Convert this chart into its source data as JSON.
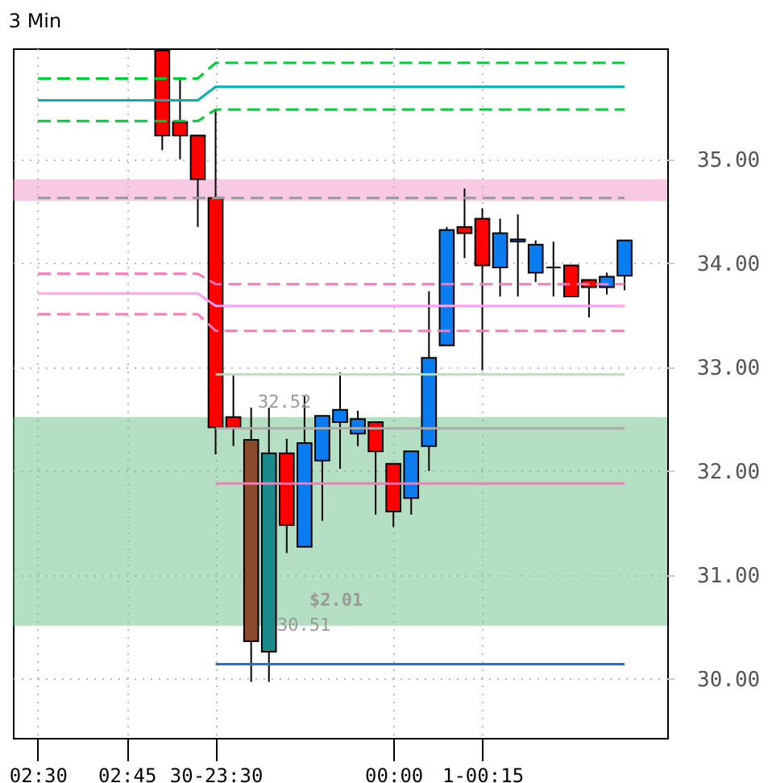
{
  "chart_data": {
    "type": "candlestick",
    "title": "3 Min",
    "categories": [
      null,
      "02:30",
      null,
      null,
      null,
      null,
      "02:45",
      null,
      null,
      null,
      null,
      "30-23:30",
      null,
      null,
      null,
      null,
      null,
      null,
      null,
      null,
      null,
      "00:00",
      null,
      null,
      null,
      null,
      "1-00:15",
      null,
      null,
      null,
      null,
      null,
      null,
      null,
      null,
      null,
      null
    ],
    "ohlc": [
      null,
      null,
      null,
      null,
      null,
      null,
      null,
      null,
      [
        36.05,
        36.05,
        35.09,
        35.23
      ],
      [
        35.36,
        35.78,
        35.0,
        35.23
      ],
      [
        35.23,
        35.23,
        34.35,
        34.81
      ],
      [
        34.63,
        35.48,
        32.16,
        32.42
      ],
      [
        32.52,
        32.92,
        32.24,
        32.42
      ],
      [
        32.3,
        32.61,
        29.97,
        30.36
      ],
      [
        30.26,
        32.61,
        29.97,
        32.17
      ],
      [
        32.17,
        32.31,
        31.21,
        31.48
      ],
      [
        31.27,
        32.72,
        31.27,
        32.27
      ],
      [
        32.1,
        32.53,
        31.52,
        32.53
      ],
      [
        32.47,
        32.95,
        32.02,
        32.59
      ],
      [
        32.36,
        32.58,
        32.24,
        32.5
      ],
      [
        32.47,
        32.47,
        31.58,
        32.19
      ],
      [
        32.07,
        32.07,
        31.46,
        31.61
      ],
      [
        31.74,
        32.19,
        31.58,
        32.19
      ],
      [
        32.24,
        33.73,
        32.0,
        33.09
      ],
      [
        33.21,
        34.35,
        33.21,
        34.32
      ],
      [
        34.35,
        34.72,
        34.05,
        34.29
      ],
      [
        34.43,
        34.53,
        32.97,
        33.98
      ],
      [
        33.96,
        34.43,
        33.68,
        34.29
      ],
      [
        34.21,
        34.47,
        33.68,
        34.23
      ],
      [
        33.91,
        34.22,
        33.82,
        34.18
      ],
      [
        33.96,
        34.21,
        33.68,
        33.96
      ],
      [
        33.98,
        33.98,
        33.68,
        33.68
      ],
      [
        33.84,
        33.84,
        33.48,
        33.77
      ],
      [
        33.77,
        33.91,
        33.7,
        33.87
      ],
      [
        33.88,
        34.22,
        33.74,
        34.22
      ],
      null,
      null
    ],
    "colors": [
      null,
      null,
      null,
      null,
      null,
      null,
      null,
      null,
      "#ff0000",
      "#ff0000",
      "#ff0000",
      "#ff0000",
      "#ff0000",
      "#8b4a2b",
      "#1a8a8a",
      "#ff0000",
      "#0a7cf0",
      "#0a7cf0",
      "#0a7cf0",
      "#0a7cf0",
      "#ff0000",
      "#ff0000",
      "#0a7cf0",
      "#0a7cf0",
      "#0a7cf0",
      "#ff0000",
      "#ff0000",
      "#0a7cf0",
      "#0a7cf0",
      "#0a7cf0",
      "#000000",
      "#ff0000",
      "#ff0000",
      "#0a7cf0",
      "#0a7cf0",
      null,
      null
    ],
    "series": [
      {
        "type": "line",
        "color": "#00b3b3",
        "line_style": "solid",
        "values": [
          null,
          35.57,
          35.57,
          35.57,
          35.57,
          35.57,
          35.57,
          35.57,
          35.57,
          35.57,
          35.57,
          35.7,
          35.7,
          35.7,
          35.7,
          35.7,
          35.7,
          35.7,
          35.7,
          35.7,
          35.7,
          35.7,
          35.7,
          35.7,
          35.7,
          35.7,
          35.7,
          35.7,
          35.7,
          35.7,
          35.7,
          35.7,
          35.7,
          35.7,
          35.7,
          null,
          null
        ]
      },
      {
        "type": "line",
        "color": "#00cc33",
        "line_style": "dashed",
        "values": [
          null,
          35.78,
          35.78,
          35.78,
          35.78,
          35.78,
          35.78,
          35.78,
          35.78,
          35.78,
          35.78,
          35.93,
          35.93,
          35.93,
          35.93,
          35.93,
          35.93,
          35.93,
          35.93,
          35.93,
          35.93,
          35.93,
          35.93,
          35.93,
          35.93,
          35.93,
          35.93,
          35.93,
          35.93,
          35.93,
          35.93,
          35.93,
          35.93,
          35.93,
          35.93,
          null,
          null
        ]
      },
      {
        "type": "line",
        "color": "#00cc33",
        "line_style": "dashed",
        "values": [
          null,
          35.37,
          35.37,
          35.37,
          35.37,
          35.37,
          35.37,
          35.37,
          35.37,
          35.37,
          35.37,
          35.48,
          35.48,
          35.48,
          35.48,
          35.48,
          35.48,
          35.48,
          35.48,
          35.48,
          35.48,
          35.48,
          35.48,
          35.48,
          35.48,
          35.48,
          35.48,
          35.48,
          35.48,
          35.48,
          35.48,
          35.48,
          35.48,
          35.48,
          35.48,
          null,
          null
        ]
      },
      {
        "type": "line",
        "color": "#999999",
        "line_style": "dashed",
        "values": [
          null,
          34.63,
          34.63,
          34.63,
          34.63,
          34.63,
          34.63,
          34.63,
          34.63,
          34.63,
          34.63,
          34.63,
          34.63,
          34.63,
          34.63,
          34.63,
          34.63,
          34.63,
          34.63,
          34.63,
          34.63,
          34.63,
          34.63,
          34.63,
          34.63,
          34.63,
          34.63,
          34.63,
          34.63,
          34.63,
          34.63,
          34.63,
          34.63,
          34.63,
          34.63,
          null,
          null
        ]
      },
      {
        "type": "line",
        "color": "#ff77bb",
        "line_style": "dashed",
        "values": [
          null,
          33.9,
          33.9,
          33.9,
          33.9,
          33.9,
          33.9,
          33.9,
          33.9,
          33.9,
          33.9,
          33.8,
          33.8,
          33.8,
          33.8,
          33.8,
          33.8,
          33.8,
          33.8,
          33.8,
          33.8,
          33.8,
          33.8,
          33.8,
          33.8,
          33.8,
          33.8,
          33.8,
          33.8,
          33.8,
          33.8,
          33.8,
          33.8,
          33.8,
          33.8,
          null,
          null
        ]
      },
      {
        "type": "line",
        "color": "#ffa0f0",
        "line_style": "solid",
        "values": [
          null,
          33.71,
          33.71,
          33.71,
          33.71,
          33.71,
          33.71,
          33.71,
          33.71,
          33.71,
          33.71,
          33.59,
          33.59,
          33.59,
          33.59,
          33.59,
          33.59,
          33.59,
          33.59,
          33.59,
          33.59,
          33.59,
          33.59,
          33.59,
          33.59,
          33.59,
          33.59,
          33.59,
          33.59,
          33.59,
          33.59,
          33.59,
          33.59,
          33.59,
          33.59,
          null,
          null
        ]
      },
      {
        "type": "line",
        "color": "#ff77bb",
        "line_style": "dashed",
        "values": [
          null,
          33.51,
          33.51,
          33.51,
          33.51,
          33.51,
          33.51,
          33.51,
          33.51,
          33.51,
          33.51,
          33.35,
          33.35,
          33.35,
          33.35,
          33.35,
          33.35,
          33.35,
          33.35,
          33.35,
          33.35,
          33.35,
          33.35,
          33.35,
          33.35,
          33.35,
          33.35,
          33.35,
          33.35,
          33.35,
          33.35,
          33.35,
          33.35,
          33.35,
          33.35,
          null,
          null
        ]
      },
      {
        "type": "line",
        "color": "#b8e0b8",
        "line_style": "solid",
        "values": [
          null,
          null,
          null,
          null,
          null,
          null,
          null,
          null,
          null,
          null,
          null,
          32.93,
          32.93,
          32.93,
          32.93,
          32.93,
          32.93,
          32.93,
          32.93,
          32.93,
          32.93,
          32.93,
          32.93,
          32.93,
          32.93,
          32.93,
          32.93,
          32.93,
          32.93,
          32.93,
          32.93,
          32.93,
          32.93,
          32.93,
          32.93,
          null,
          null
        ]
      },
      {
        "type": "line",
        "color": "#aaaaaa",
        "line_style": "solid",
        "values": [
          null,
          null,
          null,
          null,
          null,
          null,
          null,
          null,
          null,
          null,
          null,
          32.41,
          32.41,
          32.41,
          32.41,
          32.41,
          32.41,
          32.41,
          32.41,
          32.41,
          32.41,
          32.41,
          32.41,
          32.41,
          32.41,
          32.41,
          32.41,
          32.41,
          32.41,
          32.41,
          32.41,
          32.41,
          32.41,
          32.41,
          32.41,
          null,
          null
        ]
      },
      {
        "type": "line",
        "color": "#ff77bb",
        "line_style": "solid",
        "values": [
          null,
          null,
          null,
          null,
          null,
          null,
          null,
          null,
          null,
          null,
          null,
          31.88,
          31.88,
          31.88,
          31.88,
          31.88,
          31.88,
          31.88,
          31.88,
          31.88,
          31.88,
          31.88,
          31.88,
          31.88,
          31.88,
          31.88,
          31.88,
          31.88,
          31.88,
          31.88,
          31.88,
          31.88,
          31.88,
          31.88,
          31.88,
          null,
          null
        ]
      },
      {
        "type": "line",
        "color": "#1a70e0",
        "line_style": "solid",
        "values": [
          null,
          null,
          null,
          null,
          null,
          null,
          null,
          null,
          null,
          null,
          null,
          30.14,
          30.14,
          30.14,
          30.14,
          30.14,
          30.14,
          30.14,
          30.14,
          30.14,
          30.14,
          30.14,
          30.14,
          30.14,
          30.14,
          30.14,
          30.14,
          30.14,
          30.14,
          30.14,
          30.14,
          30.14,
          30.14,
          30.14,
          30.14,
          null,
          null
        ]
      }
    ],
    "bands": [
      {
        "axis": "y",
        "from": 34.6,
        "to": 34.81,
        "color": "#f088c0"
      },
      {
        "axis": "y",
        "from": 30.51,
        "to": 32.52,
        "color": "#5cb87a"
      }
    ],
    "annotations": [
      {
        "text": "32.52",
        "y": 32.52
      },
      "$2.01",
      {
        "text": "30.51",
        "y": 30.51
      }
    ],
    "ylim": [
      29.43,
      36.07
    ],
    "yticks": [
      {
        "value": 30,
        "label": "30.00"
      },
      {
        "value": 31,
        "label": "31.00"
      },
      {
        "value": 32,
        "label": "32.00"
      },
      {
        "value": 33,
        "label": "33.00"
      },
      {
        "value": 34,
        "label": "34.00"
      },
      {
        "value": 35,
        "label": "35.00"
      }
    ],
    "grid": true
  }
}
